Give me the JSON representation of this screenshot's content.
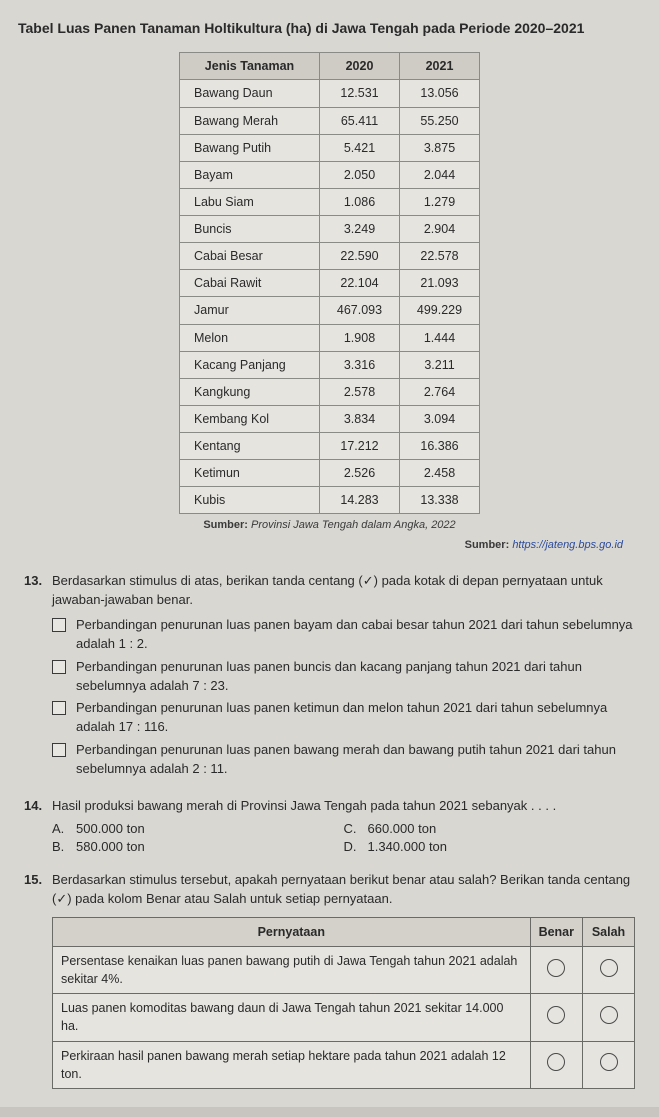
{
  "title": "Tabel Luas Panen Tanaman Holtikultura (ha) di Jawa Tengah pada Periode 2020–2021",
  "table": {
    "headers": [
      "Jenis Tanaman",
      "2020",
      "2021"
    ],
    "rows": [
      {
        "name": "Bawang Daun",
        "y2020": "12.531",
        "y2021": "13.056"
      },
      {
        "name": "Bawang Merah",
        "y2020": "65.411",
        "y2021": "55.250"
      },
      {
        "name": "Bawang Putih",
        "y2020": "5.421",
        "y2021": "3.875"
      },
      {
        "name": "Bayam",
        "y2020": "2.050",
        "y2021": "2.044"
      },
      {
        "name": "Labu Siam",
        "y2020": "1.086",
        "y2021": "1.279"
      },
      {
        "name": "Buncis",
        "y2020": "3.249",
        "y2021": "2.904"
      },
      {
        "name": "Cabai Besar",
        "y2020": "22.590",
        "y2021": "22.578"
      },
      {
        "name": "Cabai Rawit",
        "y2020": "22.104",
        "y2021": "21.093"
      },
      {
        "name": "Jamur",
        "y2020": "467.093",
        "y2021": "499.229"
      },
      {
        "name": "Melon",
        "y2020": "1.908",
        "y2021": "1.444"
      },
      {
        "name": "Kacang Panjang",
        "y2020": "3.316",
        "y2021": "3.211"
      },
      {
        "name": "Kangkung",
        "y2020": "2.578",
        "y2021": "2.764"
      },
      {
        "name": "Kembang Kol",
        "y2020": "3.834",
        "y2021": "3.094"
      },
      {
        "name": "Kentang",
        "y2020": "17.212",
        "y2021": "16.386"
      },
      {
        "name": "Ketimun",
        "y2020": "2.526",
        "y2021": "2.458"
      },
      {
        "name": "Kubis",
        "y2020": "14.283",
        "y2021": "13.338"
      }
    ]
  },
  "source1_label": "Sumber:",
  "source1_text": "Provinsi Jawa Tengah dalam Angka, 2022",
  "source2_label": "Sumber:",
  "source2_link": "https://jateng.bps.go.id",
  "q13": {
    "num": "13.",
    "prompt": "Berdasarkan stimulus di atas, berikan tanda centang (✓) pada kotak di depan pernyataan untuk jawaban-jawaban benar.",
    "options": [
      "Perbandingan penurunan luas panen bayam dan cabai besar tahun 2021 dari tahun sebelumnya adalah 1 : 2.",
      "Perbandingan penurunan luas panen buncis dan kacang panjang tahun 2021 dari tahun sebelumnya adalah 7 : 23.",
      "Perbandingan penurunan luas panen ketimun dan melon tahun 2021 dari tahun sebelumnya adalah 17 : 116.",
      "Perbandingan penurunan luas panen bawang merah dan bawang putih tahun 2021 dari tahun sebelumnya adalah 2 : 11."
    ]
  },
  "q14": {
    "num": "14.",
    "prompt": "Hasil produksi bawang merah di Provinsi Jawa Tengah pada tahun 2021 sebanyak . . . .",
    "choices": [
      {
        "letter": "A.",
        "text": "500.000 ton"
      },
      {
        "letter": "B.",
        "text": "580.000 ton"
      },
      {
        "letter": "C.",
        "text": "660.000 ton"
      },
      {
        "letter": "D.",
        "text": "1.340.000 ton"
      }
    ]
  },
  "q15": {
    "num": "15.",
    "prompt": "Berdasarkan stimulus tersebut, apakah pernyataan berikut benar atau salah? Berikan tanda centang (✓) pada kolom Benar atau Salah untuk setiap pernyataan.",
    "headers": [
      "Pernyataan",
      "Benar",
      "Salah"
    ],
    "rows": [
      "Persentase kenaikan luas panen bawang putih di Jawa Tengah tahun 2021 adalah sekitar 4%.",
      "Luas panen komoditas bawang daun di Jawa Tengah tahun 2021 sekitar 14.000 ha.",
      "Perkiraan hasil panen bawang merah setiap hektare pada tahun 2021 adalah 12 ton."
    ]
  }
}
